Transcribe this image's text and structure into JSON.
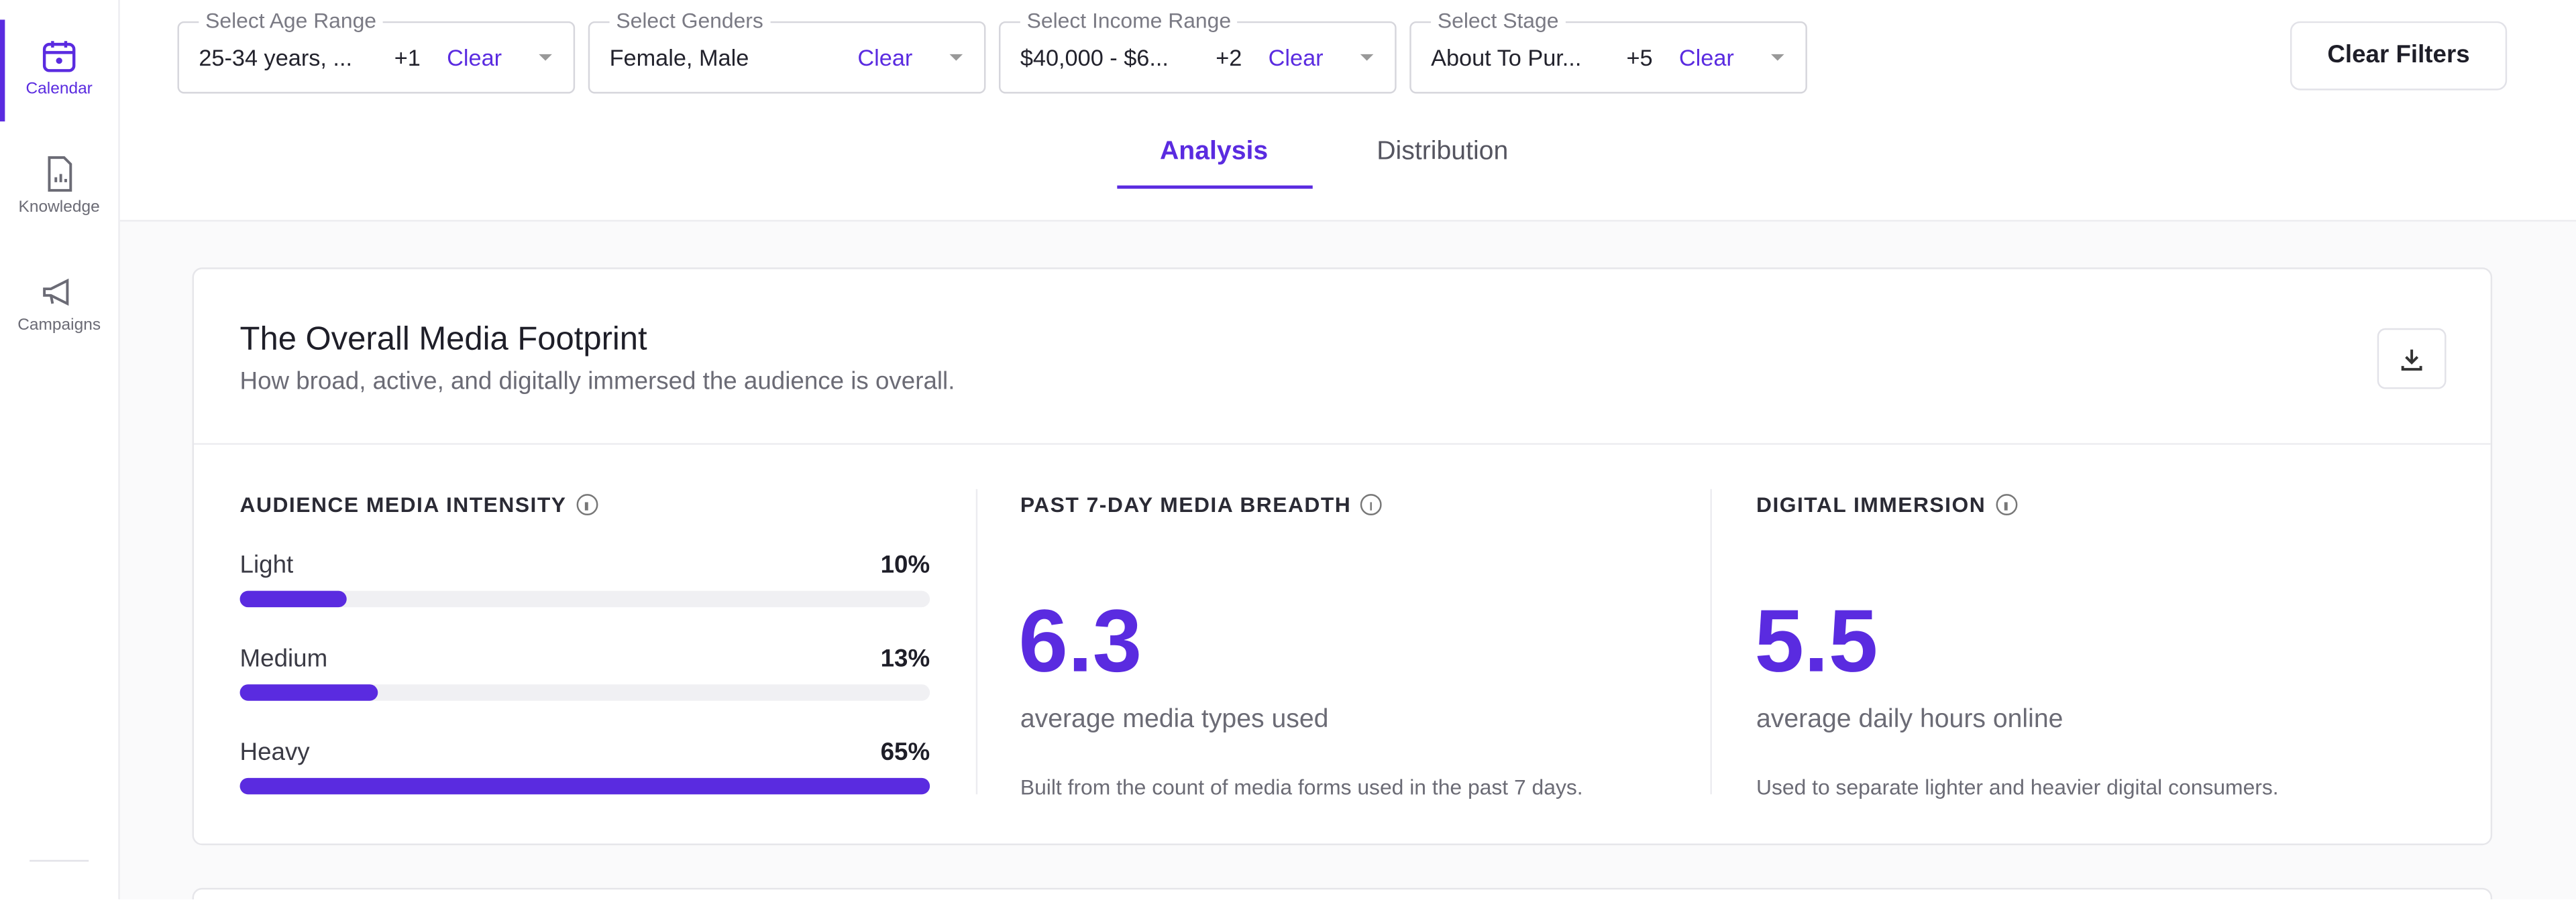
{
  "sidebar": {
    "items": [
      "Calendar",
      "Knowledge",
      "Campaigns"
    ]
  },
  "filters": [
    {
      "legend": "Select Age Range",
      "value": "25-34 years, ...",
      "count": "+1",
      "clear": "Clear"
    },
    {
      "legend": "Select Genders",
      "value": "Female, Male",
      "clear": "Clear"
    },
    {
      "legend": "Select Income Range",
      "value": "$40,000 - $6...",
      "count": "+2",
      "clear": "Clear"
    },
    {
      "legend": "Select Stage",
      "value": "About To Pur...",
      "count": "+5",
      "clear": "Clear"
    }
  ],
  "clear_filters": "Clear Filters",
  "tabs": [
    "Analysis",
    "Distribution"
  ],
  "card": {
    "title": "The Overall Media Footprint",
    "subtitle": "How broad, active, and digitally immersed the audience is overall.",
    "intensity": {
      "title": "AUDIENCE MEDIA INTENSITY",
      "categories": [
        "Light",
        "Medium",
        "Heavy"
      ],
      "values": [
        10,
        13,
        65
      ],
      "value_labels": [
        "10%",
        "13%",
        "65%"
      ]
    },
    "breadth": {
      "title": "PAST 7-DAY MEDIA BREADTH",
      "value": 6.3,
      "caption": "average media types used",
      "note": "Built from the count of media forms used in the past 7 days."
    },
    "immersion": {
      "title": "DIGITAL IMMERSION",
      "value": 5.5,
      "caption": "average daily hours online",
      "note": "Used to separate lighter and heavier digital consumers."
    }
  }
}
